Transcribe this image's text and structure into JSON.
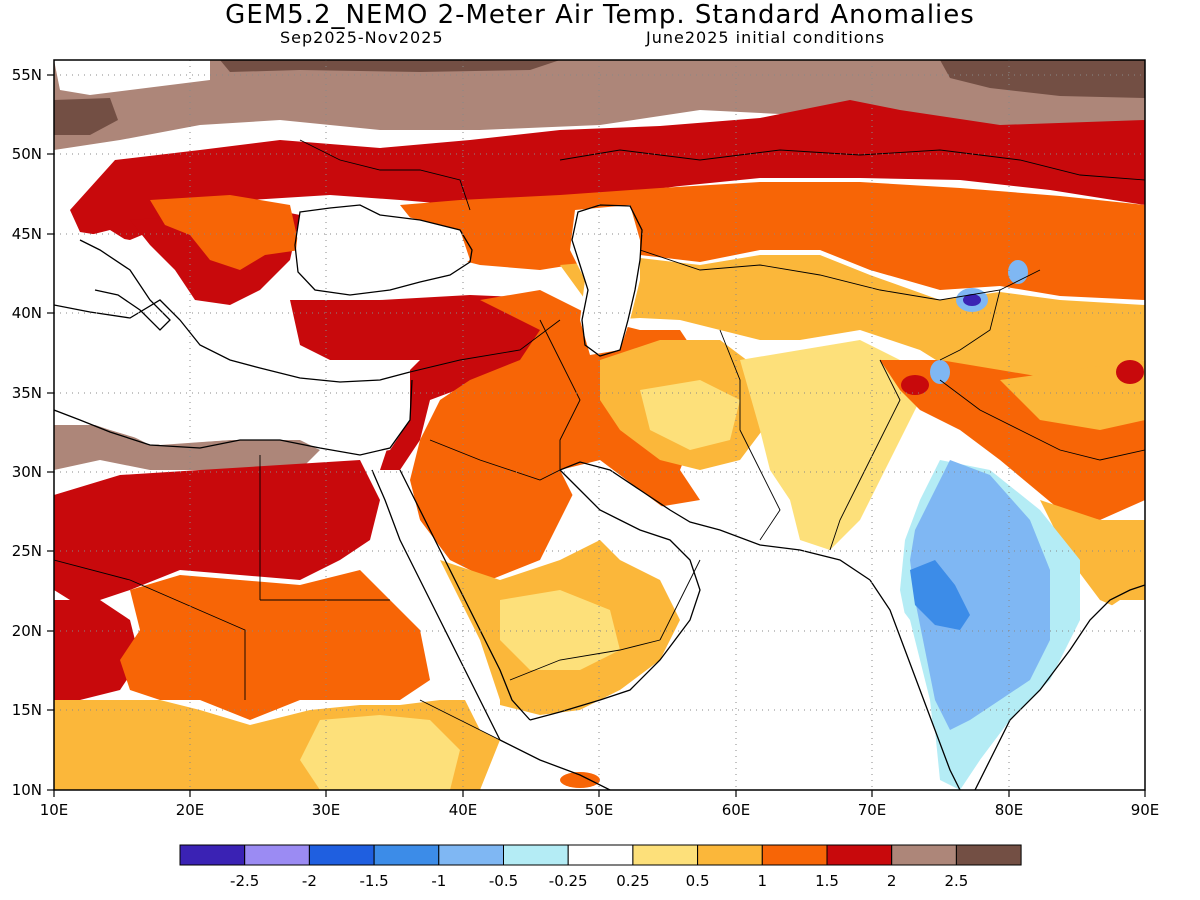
{
  "header": {
    "title": "GEM5.2_NEMO 2-Meter Air Temp. Standard Anomalies",
    "period": "Sep2025-Nov2025",
    "init": "June2025 initial conditions"
  },
  "map": {
    "lon_range": [
      10,
      90
    ],
    "lat_range": [
      10,
      56
    ],
    "x_ticks": [
      "10E",
      "20E",
      "30E",
      "40E",
      "50E",
      "60E",
      "70E",
      "80E",
      "90E"
    ],
    "y_ticks": [
      "55N",
      "50N",
      "45N",
      "40N",
      "35N",
      "30N",
      "25N",
      "20N",
      "15N",
      "10N"
    ],
    "grid": "dotted"
  },
  "legend": {
    "colors": [
      "#3a22b4",
      "#9b8bf3",
      "#1f5fe0",
      "#3c8ce8",
      "#7fb7f3",
      "#b4ecf5",
      "#ffffff",
      "#fde07a",
      "#fbb73a",
      "#f76506",
      "#c8090c",
      "#ad8679",
      "#734f44"
    ],
    "labels": [
      "-2.5",
      "-2",
      "-1.5",
      "-1",
      "-0.5",
      "-0.25",
      "0.25",
      "0.5",
      "1",
      "1.5",
      "2",
      "2.5"
    ]
  }
}
